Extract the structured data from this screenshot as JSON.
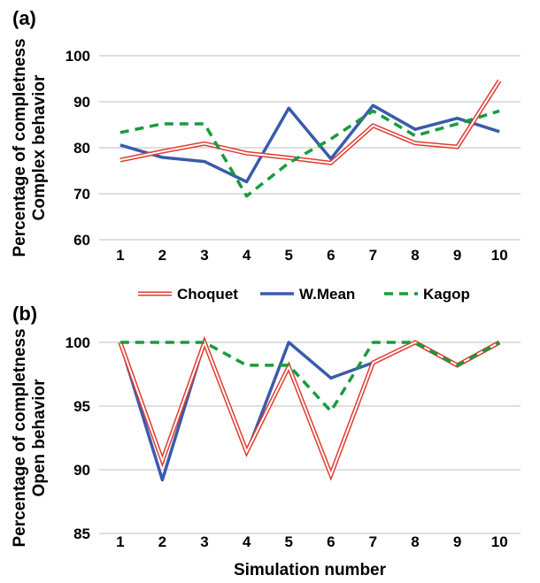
{
  "chart_data": [
    {
      "type": "line",
      "panel_label": "(a)",
      "ylabel_lines": [
        "Percentage of completness",
        "Complex behavior"
      ],
      "xlabel": "",
      "ylim": [
        60,
        100
      ],
      "yticks": [
        60,
        70,
        80,
        90,
        100
      ],
      "grid": "horizontal",
      "categories": [
        "1",
        "2",
        "3",
        "4",
        "5",
        "6",
        "7",
        "8",
        "9",
        "10"
      ],
      "series": [
        {
          "name": "Choquet",
          "style": "double-line",
          "color": "#e03c31",
          "values": [
            77.3,
            79.2,
            80.9,
            78.8,
            77.8,
            76.7,
            84.8,
            81.0,
            80.2,
            94.6
          ]
        },
        {
          "name": "W.Mean",
          "style": "solid",
          "color": "#3a5bab",
          "values": [
            80.6,
            77.9,
            77.0,
            72.6,
            88.6,
            77.6,
            89.2,
            84.0,
            86.4,
            83.5
          ]
        },
        {
          "name": "Kagop",
          "style": "dashed",
          "color": "#199b3c",
          "values": [
            83.3,
            85.2,
            85.2,
            69.5,
            76.7,
            81.9,
            88.0,
            82.6,
            85.2,
            88.0
          ]
        }
      ]
    },
    {
      "type": "line",
      "panel_label": "(b)",
      "ylabel_lines": [
        "Percentage of completness",
        "Open behavior"
      ],
      "xlabel": "Simulation number",
      "ylim": [
        85,
        100
      ],
      "yticks": [
        85,
        90,
        95,
        100
      ],
      "grid": "horizontal",
      "categories": [
        "1",
        "2",
        "3",
        "4",
        "5",
        "6",
        "7",
        "8",
        "9",
        "10"
      ],
      "series": [
        {
          "name": "Choquet",
          "style": "double-line",
          "color": "#e03c31",
          "values": [
            100,
            90.7,
            100,
            91.4,
            98.1,
            89.6,
            98.4,
            100,
            98.2,
            100
          ]
        },
        {
          "name": "W.Mean",
          "style": "solid",
          "color": "#3a5bab",
          "values": [
            100,
            89.2,
            100,
            91.3,
            100,
            97.2,
            98.4,
            100,
            98.2,
            100
          ]
        },
        {
          "name": "Kagop",
          "style": "dashed",
          "color": "#199b3c",
          "values": [
            100,
            100,
            100,
            98.2,
            98.2,
            94.6,
            100,
            100,
            98.2,
            100
          ]
        }
      ]
    }
  ],
  "legend": {
    "placement": "between-panels",
    "items": [
      {
        "label": "Choquet",
        "style": "double-line",
        "color": "#e03c31"
      },
      {
        "label": "W.Mean",
        "style": "solid",
        "color": "#3a5bab"
      },
      {
        "label": "Kagop",
        "style": "dashed",
        "color": "#199b3c"
      }
    ]
  }
}
